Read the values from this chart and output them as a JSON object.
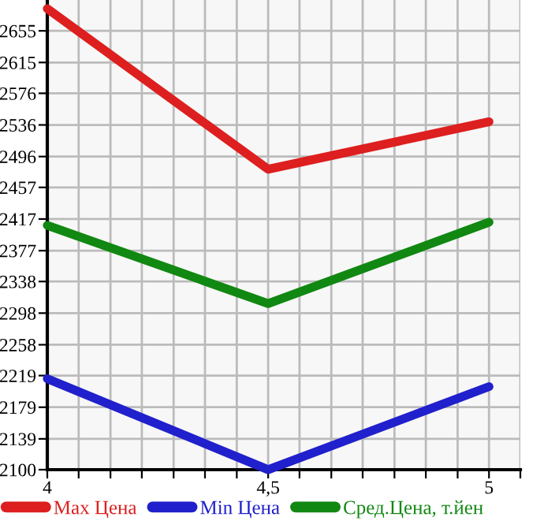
{
  "chart_data": {
    "type": "line",
    "x": [
      4,
      4.5,
      5
    ],
    "series": [
      {
        "name": "Max Цена",
        "color": "#dd1f1f",
        "values": [
          2683,
          2480,
          2540
        ]
      },
      {
        "name": "Min Цена",
        "color": "#2020cc",
        "values": [
          2215,
          2100,
          2205
        ]
      },
      {
        "name": "Сред.Цена, т.йен",
        "color": "#118811",
        "values": [
          2409,
          2310,
          2413
        ]
      }
    ],
    "xlim": [
      4,
      5.071
    ],
    "xticks": [
      4,
      {
        "value": 4.071,
        "label": null
      },
      {
        "value": 4.143,
        "label": null
      },
      {
        "value": 4.214,
        "label": null
      },
      {
        "value": 4.286,
        "label": null
      },
      {
        "value": 4.357,
        "label": null
      },
      {
        "value": 4.429,
        "label": null
      },
      {
        "value": 4.5,
        "label": "4,5"
      },
      {
        "value": 4.571,
        "label": null
      },
      {
        "value": 4.643,
        "label": null
      },
      {
        "value": 4.714,
        "label": null
      },
      {
        "value": 4.786,
        "label": null
      },
      {
        "value": 4.857,
        "label": null
      },
      {
        "value": 4.929,
        "label": null
      },
      5,
      {
        "value": 5.071,
        "label": null
      }
    ],
    "ylim": [
      2100,
      2694
    ],
    "yticks": [
      2100,
      2139,
      2179,
      2219,
      2258,
      2298,
      2338,
      2377,
      2417,
      2457,
      2496,
      2536,
      2576,
      2615,
      2655
    ],
    "grid": true,
    "legend": "bottom",
    "marker": "none",
    "line_style": "solid"
  }
}
